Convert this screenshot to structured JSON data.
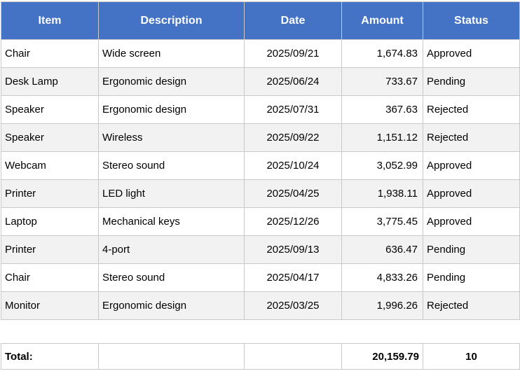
{
  "table": {
    "columns": [
      {
        "key": "item",
        "label": "Item",
        "align": "left"
      },
      {
        "key": "description",
        "label": "Description",
        "align": "left"
      },
      {
        "key": "date",
        "label": "Date",
        "align": "center"
      },
      {
        "key": "amount",
        "label": "Amount",
        "align": "right"
      },
      {
        "key": "status",
        "label": "Status",
        "align": "left"
      }
    ],
    "rows": [
      [
        "Chair",
        "Wide screen",
        "2025/09/21",
        "1,674.83",
        "Approved"
      ],
      [
        "Desk Lamp",
        "Ergonomic design",
        "2025/06/24",
        "733.67",
        "Pending"
      ],
      [
        "Speaker",
        "Ergonomic design",
        "2025/07/31",
        "367.63",
        "Rejected"
      ],
      [
        "Speaker",
        "Wireless",
        "2025/09/22",
        "1,151.12",
        "Rejected"
      ],
      [
        "Webcam",
        "Stereo sound",
        "2025/10/24",
        "3,052.99",
        "Approved"
      ],
      [
        "Printer",
        "LED light",
        "2025/04/25",
        "1,938.11",
        "Approved"
      ],
      [
        "Laptop",
        "Mechanical keys",
        "2025/12/26",
        "3,775.45",
        "Approved"
      ],
      [
        "Printer",
        "4-port",
        "2025/09/13",
        "636.47",
        "Pending"
      ],
      [
        "Chair",
        "Stereo sound",
        "2025/04/17",
        "4,833.26",
        "Pending"
      ],
      [
        "Monitor",
        "Ergonomic design",
        "2025/03/25",
        "1,996.26",
        "Rejected"
      ]
    ]
  },
  "totals": {
    "label": "Total:",
    "description": "",
    "date": "",
    "amount": "20,159.79",
    "count": "10"
  },
  "colors": {
    "header_bg": "#4472c4",
    "header_text": "#ffffff",
    "alt_row_bg": "#f2f2f2",
    "border": "#c9c9c9"
  }
}
